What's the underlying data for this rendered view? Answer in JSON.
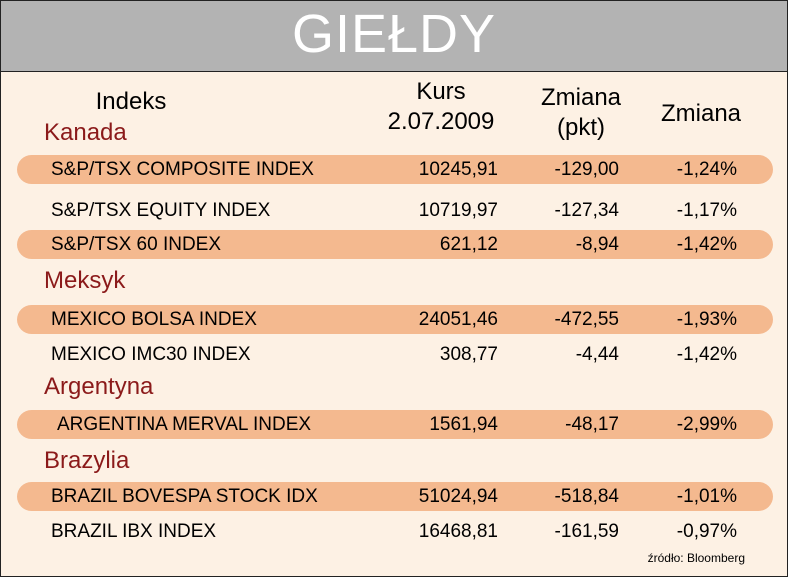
{
  "title": "GIEŁDY",
  "columns": {
    "indeks": "Indeks",
    "kurs_line1": "Kurs",
    "kurs_line2": "2.07.2009",
    "zmiana_pkt_line1": "Zmiana",
    "zmiana_pkt_line2": "(pkt)",
    "zmiana_pct": "Zmiana"
  },
  "groups": [
    {
      "country": "Kanada",
      "rows": [
        {
          "name": "S&P/TSX COMPOSITE INDEX",
          "kurs": "10245,91",
          "pkt": "-129,00",
          "pct": "-1,24%",
          "highlight": true
        },
        {
          "name": "S&P/TSX EQUITY INDEX",
          "kurs": "10719,97",
          "pkt": "-127,34",
          "pct": "-1,17%",
          "highlight": false
        },
        {
          "name": "S&P/TSX 60 INDEX",
          "kurs": "621,12",
          "pkt": "-8,94",
          "pct": "-1,42%",
          "highlight": true
        }
      ]
    },
    {
      "country": "Meksyk",
      "rows": [
        {
          "name": "MEXICO BOLSA INDEX",
          "kurs": "24051,46",
          "pkt": "-472,55",
          "pct": "-1,93%",
          "highlight": true
        },
        {
          "name": "MEXICO IMC30 INDEX",
          "kurs": "308,77",
          "pkt": "-4,44",
          "pct": "-1,42%",
          "highlight": false
        }
      ]
    },
    {
      "country": "Argentyna",
      "rows": [
        {
          "name": "ARGENTINA MERVAL INDEX",
          "kurs": "1561,94",
          "pkt": "-48,17",
          "pct": "-2,99%",
          "highlight": true
        }
      ]
    },
    {
      "country": "Brazylia",
      "rows": [
        {
          "name": "BRAZIL BOVESPA STOCK IDX",
          "kurs": "51024,94",
          "pkt": "-518,84",
          "pct": "-1,01%",
          "highlight": true
        },
        {
          "name": "BRAZIL IBX INDEX",
          "kurs": "16468,81",
          "pkt": "-161,59",
          "pct": "-0,97%",
          "highlight": false
        }
      ]
    }
  ],
  "source": "źródło: Bloomberg",
  "colors": {
    "header_bg": "#b3b3b3",
    "body_bg": "#fdf1e4",
    "highlight_band": "#f4b98f",
    "country_text": "#8b1a1a"
  }
}
